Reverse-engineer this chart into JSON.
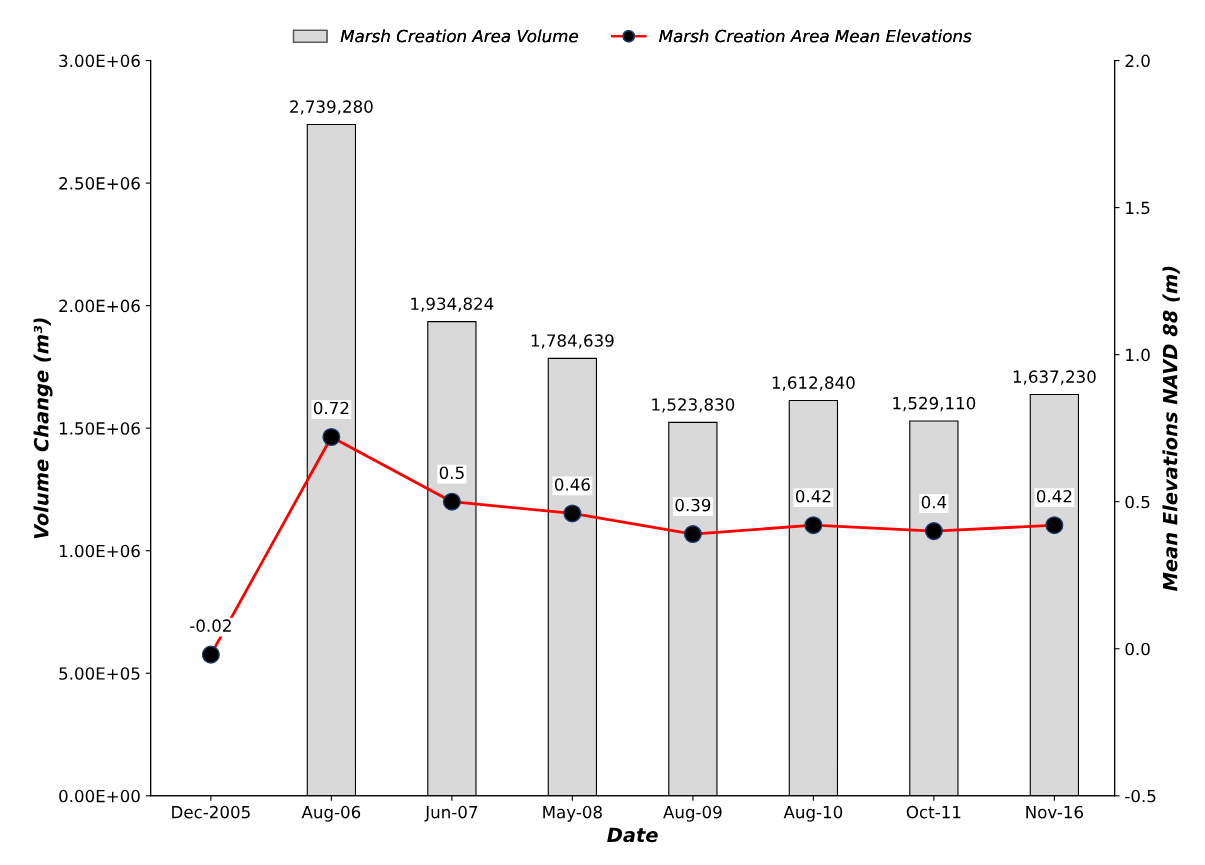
{
  "chart_data": {
    "type": "bar",
    "categories": [
      "Dec-2005",
      "Aug-06",
      "Jun-07",
      "May-08",
      "Aug-09",
      "Aug-10",
      "Oct-11",
      "Nov-16"
    ],
    "series": [
      {
        "name": "Marsh Creation Area Volume",
        "color": "#d9d9d9",
        "values": [
          null,
          2739280,
          1934824,
          1784639,
          1523830,
          1612840,
          1529110,
          1637230
        ],
        "value_labels": [
          null,
          "2,739,280",
          "1,934,824",
          "1,784,639",
          "1,523,830",
          "1,612,840",
          "1,529,110",
          "1,637,230"
        ]
      },
      {
        "name": "Marsh Creation Area Mean Elevations",
        "type": "line",
        "axis": "y2",
        "color": "#ff0000",
        "marker": "circle",
        "values": [
          -0.02,
          0.72,
          0.5,
          0.46,
          0.39,
          0.42,
          0.4,
          0.42
        ],
        "value_labels": [
          "-0.02",
          "0.72",
          "0.5",
          "0.46",
          "0.39",
          "0.42",
          "0.4",
          "0.42"
        ]
      }
    ],
    "xlabel": "Date",
    "ylabel": "Volume Change (m³)",
    "y2label": "Mean Elevations NAVD 88 (m)",
    "ylim": [
      0,
      3000000
    ],
    "yticks": [
      {
        "value": 0,
        "label": "0.00E+00"
      },
      {
        "value": 500000,
        "label": "5.00E+05"
      },
      {
        "value": 1000000,
        "label": "1.00E+06"
      },
      {
        "value": 1500000,
        "label": "1.50E+06"
      },
      {
        "value": 2000000,
        "label": "2.00E+06"
      },
      {
        "value": 2500000,
        "label": "2.50E+06"
      },
      {
        "value": 3000000,
        "label": "3.00E+06"
      }
    ],
    "y2lim": [
      -0.5,
      2.0
    ],
    "y2ticks": [
      {
        "value": -0.5,
        "label": "-0.5"
      },
      {
        "value": 0,
        "label": "0.0"
      },
      {
        "value": 0.5,
        "label": "0.5"
      },
      {
        "value": 1.0,
        "label": "1.0"
      },
      {
        "value": 1.5,
        "label": "1.5"
      },
      {
        "value": 2.0,
        "label": "2.0"
      }
    ],
    "legend": "top",
    "grid": false
  }
}
